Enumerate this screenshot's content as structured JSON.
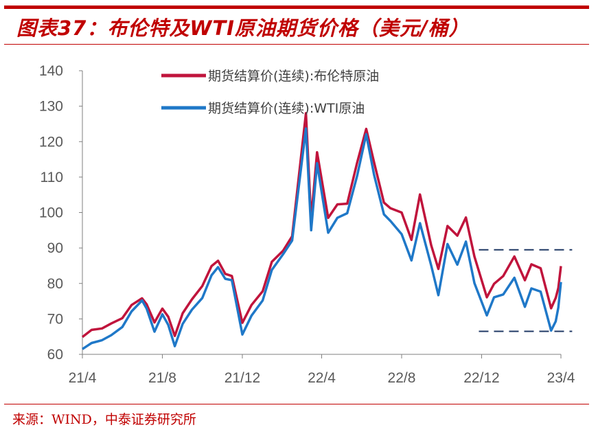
{
  "title": "图表37：布伦特及WTI原油期货价格（美元/桶）",
  "source": "来源：WIND，中泰证券研究所",
  "colors": {
    "title": "#C00000",
    "brent": "#C0143C",
    "wti": "#1F78C8",
    "dash": "#1F3864"
  },
  "chart_data": {
    "type": "line",
    "title": "",
    "xlabel": "",
    "ylabel": "",
    "ylim": [
      60,
      140
    ],
    "yticks": [
      60,
      70,
      80,
      90,
      100,
      110,
      120,
      130,
      140
    ],
    "xticks": [
      {
        "label": "21/4",
        "date": "2021-04-01"
      },
      {
        "label": "21/8",
        "date": "2021-08-01"
      },
      {
        "label": "21/12",
        "date": "2021-12-01"
      },
      {
        "label": "22/4",
        "date": "2022-04-01"
      },
      {
        "label": "22/8",
        "date": "2022-08-01"
      },
      {
        "label": "22/12",
        "date": "2022-12-01"
      },
      {
        "label": "23/4",
        "date": "2023-04-01"
      }
    ],
    "xlim": [
      "2021-04-01",
      "2023-04-01"
    ],
    "grid": false,
    "legend": "top",
    "x": [
      "2021-04-01",
      "2021-04-15",
      "2021-05-01",
      "2021-05-15",
      "2021-06-01",
      "2021-06-15",
      "2021-07-01",
      "2021-07-08",
      "2021-07-20",
      "2021-08-01",
      "2021-08-10",
      "2021-08-20",
      "2021-09-01",
      "2021-09-15",
      "2021-10-01",
      "2021-10-15",
      "2021-10-25",
      "2021-11-05",
      "2021-11-15",
      "2021-12-01",
      "2021-12-15",
      "2022-01-01",
      "2022-01-15",
      "2022-02-01",
      "2022-02-15",
      "2022-03-08",
      "2022-03-16",
      "2022-03-25",
      "2022-04-11",
      "2022-04-25",
      "2022-05-10",
      "2022-05-25",
      "2022-06-08",
      "2022-06-20",
      "2022-07-05",
      "2022-07-15",
      "2022-08-01",
      "2022-08-16",
      "2022-08-29",
      "2022-09-15",
      "2022-09-26",
      "2022-10-10",
      "2022-10-25",
      "2022-11-07",
      "2022-11-20",
      "2022-12-09",
      "2022-12-20",
      "2023-01-03",
      "2023-01-20",
      "2023-02-05",
      "2023-02-15",
      "2023-03-01",
      "2023-03-17",
      "2023-03-24",
      "2023-03-28",
      "2023-04-01"
    ],
    "series": [
      {
        "name": "期货结算价(连续):布伦特原油",
        "color": "#C0143C",
        "values": [
          64.9,
          66.9,
          67.3,
          68.7,
          70.2,
          73.9,
          75.8,
          74.1,
          69.0,
          72.9,
          70.6,
          65.2,
          71.6,
          75.5,
          79.3,
          84.9,
          86.4,
          82.7,
          82.1,
          68.9,
          73.9,
          77.8,
          86.1,
          89.2,
          93.3,
          128.0,
          98.0,
          117.0,
          98.5,
          102.3,
          102.5,
          114.0,
          123.6,
          114.1,
          102.8,
          101.2,
          100.0,
          92.3,
          105.1,
          90.8,
          84.1,
          96.2,
          93.5,
          98.6,
          87.6,
          76.1,
          79.9,
          82.1,
          87.6,
          80.9,
          85.4,
          84.3,
          73.0,
          75.9,
          78.7,
          84.9
        ]
      },
      {
        "name": "期货结算价(连续):WTI原油",
        "color": "#1F78C8",
        "values": [
          61.5,
          63.2,
          64.0,
          65.4,
          67.7,
          72.1,
          75.2,
          72.9,
          66.4,
          71.3,
          68.3,
          62.3,
          68.6,
          72.6,
          75.9,
          82.3,
          84.6,
          81.3,
          80.9,
          65.6,
          70.9,
          75.2,
          83.8,
          88.2,
          92.1,
          123.7,
          95.0,
          113.9,
          94.3,
          98.5,
          99.8,
          110.3,
          122.1,
          110.6,
          99.5,
          97.6,
          93.9,
          86.5,
          97.0,
          85.1,
          76.7,
          91.1,
          85.3,
          91.8,
          80.1,
          71.0,
          76.1,
          76.9,
          81.6,
          73.4,
          78.6,
          77.7,
          66.7,
          69.3,
          73.2,
          80.4
        ]
      }
    ],
    "annotations": [
      {
        "type": "dashed-hline",
        "y": 89.5,
        "from": "2022-12-01",
        "to": "2023-04-15"
      },
      {
        "type": "dashed-hline",
        "y": 66.5,
        "from": "2022-12-01",
        "to": "2023-04-15"
      }
    ]
  }
}
